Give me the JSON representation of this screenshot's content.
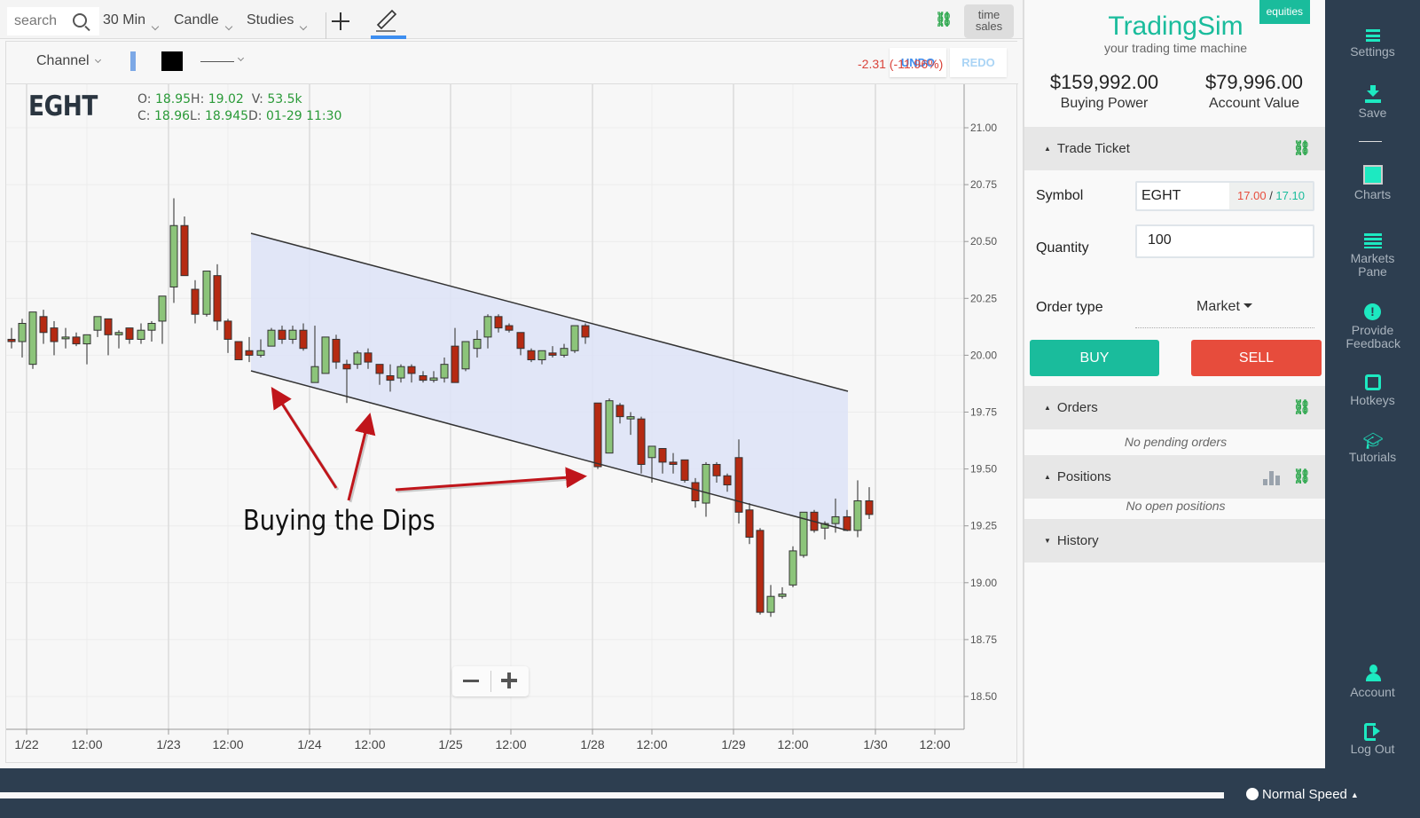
{
  "toolbar": {
    "search_placeholder": "search",
    "interval": "30 Min",
    "chart_type": "Candle",
    "studies": "Studies",
    "time_sales_line1": "time",
    "time_sales_line2": "sales"
  },
  "drawing_bar": {
    "tool": "Channel",
    "fill_color": "#7ca8e6",
    "line_color": "#000000",
    "undo": "UNDO",
    "redo": "REDO",
    "change": "-2.31 (-11.96%)"
  },
  "quote": {
    "symbol": "EGHT",
    "open_label": "O: ",
    "open": "18.95",
    "high_label": "H: ",
    "high": "19.02",
    "volume_label": "V: ",
    "volume": "53.5k",
    "close_label": "C: ",
    "close": "18.96",
    "low_label": "L: ",
    "low": "18.945",
    "date_label": "D: ",
    "date": "01-29 11:30"
  },
  "annotation": {
    "text": "Buying the Dips"
  },
  "chart_data": {
    "type": "candlestick",
    "title": "EGHT 30 Min",
    "y_ticks": [
      "21.00",
      "20.75",
      "20.50",
      "20.25",
      "20.00",
      "19.75",
      "19.50",
      "19.25",
      "19.00",
      "18.75",
      "18.50"
    ],
    "x_ticks": [
      {
        "label": "1/22",
        "x": 29
      },
      {
        "label": "12:00",
        "x": 97
      },
      {
        "label": "1/23",
        "x": 189
      },
      {
        "label": "12:00",
        "x": 256
      },
      {
        "label": "1/24",
        "x": 348
      },
      {
        "label": "12:00",
        "x": 416
      },
      {
        "label": "1/25",
        "x": 507
      },
      {
        "label": "12:00",
        "x": 575
      },
      {
        "label": "1/28",
        "x": 667
      },
      {
        "label": "12:00",
        "x": 734
      },
      {
        "label": "1/29",
        "x": 826
      },
      {
        "label": "12:00",
        "x": 893
      },
      {
        "label": "1/30",
        "x": 986
      },
      {
        "label": "12:00",
        "x": 1053
      }
    ],
    "ylim": [
      18.4,
      21.2
    ],
    "channel": {
      "upper": [
        [
          282,
          262
        ],
        [
          955,
          440
        ]
      ],
      "lower": [
        [
          282,
          417
        ],
        [
          955,
          597
        ]
      ],
      "fill": "#dde3f7"
    },
    "candles": [
      {
        "x": 12,
        "o": 20.07,
        "h": 20.12,
        "l": 20.03,
        "c": 20.06
      },
      {
        "x": 24,
        "o": 20.06,
        "h": 20.16,
        "l": 19.99,
        "c": 20.14
      },
      {
        "x": 36,
        "o": 19.96,
        "h": 20.19,
        "l": 19.94,
        "c": 20.19
      },
      {
        "x": 48,
        "o": 20.17,
        "h": 20.2,
        "l": 20.05,
        "c": 20.1
      },
      {
        "x": 60,
        "o": 20.12,
        "h": 20.15,
        "l": 20.0,
        "c": 20.06
      },
      {
        "x": 73,
        "o": 20.08,
        "h": 20.12,
        "l": 20.03,
        "c": 20.08
      },
      {
        "x": 85,
        "o": 20.08,
        "h": 20.1,
        "l": 20.04,
        "c": 20.05
      },
      {
        "x": 97,
        "o": 20.05,
        "h": 20.09,
        "l": 19.96,
        "c": 20.09
      },
      {
        "x": 109,
        "o": 20.11,
        "h": 20.16,
        "l": 20.08,
        "c": 20.17
      },
      {
        "x": 121,
        "o": 20.16,
        "h": 20.16,
        "l": 20.0,
        "c": 20.09
      },
      {
        "x": 133,
        "o": 20.09,
        "h": 20.11,
        "l": 20.03,
        "c": 20.1
      },
      {
        "x": 145,
        "o": 20.12,
        "h": 20.12,
        "l": 20.05,
        "c": 20.07
      },
      {
        "x": 158,
        "o": 20.07,
        "h": 20.14,
        "l": 20.05,
        "c": 20.11
      },
      {
        "x": 170,
        "o": 20.11,
        "h": 20.15,
        "l": 20.06,
        "c": 20.14
      },
      {
        "x": 182,
        "o": 20.15,
        "h": 20.26,
        "l": 20.05,
        "c": 20.26
      },
      {
        "x": 195,
        "o": 20.3,
        "h": 20.69,
        "l": 20.23,
        "c": 20.57
      },
      {
        "x": 207,
        "o": 20.57,
        "h": 20.61,
        "l": 20.37,
        "c": 20.35
      },
      {
        "x": 219,
        "o": 20.29,
        "h": 20.33,
        "l": 20.14,
        "c": 20.18
      },
      {
        "x": 232,
        "o": 20.18,
        "h": 20.36,
        "l": 20.17,
        "c": 20.37
      },
      {
        "x": 244,
        "o": 20.35,
        "h": 20.4,
        "l": 20.11,
        "c": 20.15
      },
      {
        "x": 256,
        "o": 20.15,
        "h": 20.16,
        "l": 20.01,
        "c": 20.07
      },
      {
        "x": 268,
        "o": 20.06,
        "h": 20.06,
        "l": 19.98,
        "c": 19.98
      },
      {
        "x": 280,
        "o": 20.02,
        "h": 20.08,
        "l": 19.97,
        "c": 20.0
      },
      {
        "x": 293,
        "o": 20.0,
        "h": 20.07,
        "l": 19.99,
        "c": 20.02
      },
      {
        "x": 305,
        "o": 20.04,
        "h": 20.12,
        "l": 20.04,
        "c": 20.11
      },
      {
        "x": 317,
        "o": 20.11,
        "h": 20.13,
        "l": 20.05,
        "c": 20.07
      },
      {
        "x": 329,
        "o": 20.07,
        "h": 20.13,
        "l": 20.05,
        "c": 20.11
      },
      {
        "x": 341,
        "o": 20.11,
        "h": 20.14,
        "l": 20.02,
        "c": 20.03
      },
      {
        "x": 354,
        "o": 19.88,
        "h": 20.13,
        "l": 19.88,
        "c": 19.95
      },
      {
        "x": 366,
        "o": 19.92,
        "h": 20.08,
        "l": 19.92,
        "c": 20.08
      },
      {
        "x": 378,
        "o": 20.07,
        "h": 20.09,
        "l": 19.94,
        "c": 19.97
      },
      {
        "x": 390,
        "o": 19.96,
        "h": 19.98,
        "l": 19.79,
        "c": 19.94
      },
      {
        "x": 402,
        "o": 19.96,
        "h": 20.02,
        "l": 19.94,
        "c": 20.01
      },
      {
        "x": 414,
        "o": 20.01,
        "h": 20.03,
        "l": 19.94,
        "c": 19.97
      },
      {
        "x": 427,
        "o": 19.96,
        "h": 19.96,
        "l": 19.87,
        "c": 19.92
      },
      {
        "x": 439,
        "o": 19.91,
        "h": 19.96,
        "l": 19.84,
        "c": 19.89
      },
      {
        "x": 451,
        "o": 19.9,
        "h": 19.96,
        "l": 19.88,
        "c": 19.95
      },
      {
        "x": 463,
        "o": 19.95,
        "h": 19.96,
        "l": 19.88,
        "c": 19.92
      },
      {
        "x": 476,
        "o": 19.91,
        "h": 19.93,
        "l": 19.88,
        "c": 19.89
      },
      {
        "x": 488,
        "o": 19.89,
        "h": 19.93,
        "l": 19.88,
        "c": 19.9
      },
      {
        "x": 500,
        "o": 19.9,
        "h": 19.99,
        "l": 19.88,
        "c": 19.96
      },
      {
        "x": 512,
        "o": 20.04,
        "h": 20.12,
        "l": 19.93,
        "c": 19.88
      },
      {
        "x": 524,
        "o": 19.94,
        "h": 20.05,
        "l": 19.93,
        "c": 20.06
      },
      {
        "x": 537,
        "o": 20.03,
        "h": 20.11,
        "l": 19.99,
        "c": 20.07
      },
      {
        "x": 549,
        "o": 20.08,
        "h": 20.18,
        "l": 20.03,
        "c": 20.17
      },
      {
        "x": 561,
        "o": 20.17,
        "h": 20.18,
        "l": 20.1,
        "c": 20.12
      },
      {
        "x": 573,
        "o": 20.13,
        "h": 20.14,
        "l": 20.1,
        "c": 20.11
      },
      {
        "x": 586,
        "o": 20.1,
        "h": 20.1,
        "l": 20.0,
        "c": 20.03
      },
      {
        "x": 598,
        "o": 20.02,
        "h": 20.03,
        "l": 19.97,
        "c": 19.98
      },
      {
        "x": 610,
        "o": 19.98,
        "h": 20.02,
        "l": 19.96,
        "c": 20.02
      },
      {
        "x": 622,
        "o": 20.01,
        "h": 20.04,
        "l": 19.99,
        "c": 20.0
      },
      {
        "x": 635,
        "o": 20.0,
        "h": 20.05,
        "l": 19.99,
        "c": 20.03
      },
      {
        "x": 647,
        "o": 20.02,
        "h": 20.13,
        "l": 20.01,
        "c": 20.13
      },
      {
        "x": 659,
        "o": 20.13,
        "h": 20.14,
        "l": 20.05,
        "c": 20.08
      },
      {
        "x": 673,
        "o": 19.79,
        "h": 19.79,
        "l": 19.5,
        "c": 19.51
      },
      {
        "x": 686,
        "o": 19.57,
        "h": 19.81,
        "l": 19.57,
        "c": 19.8
      },
      {
        "x": 698,
        "o": 19.78,
        "h": 19.79,
        "l": 19.7,
        "c": 19.73
      },
      {
        "x": 710,
        "o": 19.72,
        "h": 19.75,
        "l": 19.65,
        "c": 19.73
      },
      {
        "x": 722,
        "o": 19.72,
        "h": 19.73,
        "l": 19.48,
        "c": 19.52
      },
      {
        "x": 734,
        "o": 19.55,
        "h": 19.58,
        "l": 19.44,
        "c": 19.6
      },
      {
        "x": 746,
        "o": 19.59,
        "h": 19.59,
        "l": 19.48,
        "c": 19.53
      },
      {
        "x": 758,
        "o": 19.53,
        "h": 19.57,
        "l": 19.48,
        "c": 19.52
      },
      {
        "x": 771,
        "o": 19.54,
        "h": 19.54,
        "l": 19.44,
        "c": 19.45
      },
      {
        "x": 783,
        "o": 19.44,
        "h": 19.46,
        "l": 19.33,
        "c": 19.36
      },
      {
        "x": 795,
        "o": 19.35,
        "h": 19.53,
        "l": 19.29,
        "c": 19.52
      },
      {
        "x": 807,
        "o": 19.52,
        "h": 19.53,
        "l": 19.44,
        "c": 19.47
      },
      {
        "x": 819,
        "o": 19.47,
        "h": 19.48,
        "l": 19.4,
        "c": 19.43
      },
      {
        "x": 832,
        "o": 19.55,
        "h": 19.63,
        "l": 19.26,
        "c": 19.31
      },
      {
        "x": 844,
        "o": 19.32,
        "h": 19.35,
        "l": 19.17,
        "c": 19.2
      },
      {
        "x": 856,
        "o": 19.23,
        "h": 19.24,
        "l": 18.86,
        "c": 18.87
      },
      {
        "x": 868,
        "o": 18.87,
        "h": 18.99,
        "l": 18.85,
        "c": 18.94
      },
      {
        "x": 881,
        "o": 18.94,
        "h": 18.98,
        "l": 18.93,
        "c": 18.95
      },
      {
        "x": 893,
        "o": 18.99,
        "h": 19.16,
        "l": 18.98,
        "c": 19.14
      },
      {
        "x": 905,
        "o": 19.12,
        "h": 19.31,
        "l": 19.11,
        "c": 19.31
      },
      {
        "x": 917,
        "o": 19.31,
        "h": 19.32,
        "l": 19.22,
        "c": 19.23
      },
      {
        "x": 929,
        "o": 19.24,
        "h": 19.27,
        "l": 19.19,
        "c": 19.26
      },
      {
        "x": 941,
        "o": 19.26,
        "h": 19.37,
        "l": 19.22,
        "c": 19.29
      },
      {
        "x": 954,
        "o": 19.29,
        "h": 19.32,
        "l": 19.23,
        "c": 19.23
      },
      {
        "x": 966,
        "o": 19.23,
        "h": 19.45,
        "l": 19.2,
        "c": 19.36
      },
      {
        "x": 979,
        "o": 19.36,
        "h": 19.42,
        "l": 19.28,
        "c": 19.3
      }
    ]
  },
  "zoom_controls": {
    "minus": "−",
    "plus": "+"
  },
  "right_panel": {
    "badge": "equities",
    "brand": "TradingSim",
    "tagline": "your trading time machine",
    "buying_power": "$159,992.00",
    "buying_power_label": "Buying Power",
    "account_value": "$79,996.00",
    "account_value_label": "Account Value",
    "trade_ticket": {
      "title": "Trade Ticket",
      "symbol_label": "Symbol",
      "symbol_value": "EGHT",
      "bid": "17.00",
      "ask": "17.10",
      "bid_color": "#e74c3c",
      "ask_color": "#1abc9c",
      "quantity_label": "Quantity",
      "quantity_value": "100",
      "order_type_label": "Order type",
      "order_type_value": "Market",
      "buy": "BUY",
      "sell": "SELL"
    },
    "orders": {
      "title": "Orders",
      "empty": "No pending orders"
    },
    "positions": {
      "title": "Positions",
      "empty": "No open positions"
    },
    "history": {
      "title": "History"
    }
  },
  "sidebar": {
    "items": [
      {
        "label": "Settings"
      },
      {
        "label": "Save"
      },
      {
        "label": "Charts"
      },
      {
        "label": "Markets Pane"
      },
      {
        "label": "Provide Feedback"
      },
      {
        "label": "Hotkeys"
      },
      {
        "label": "Tutorials"
      },
      {
        "label": "Account"
      },
      {
        "label": "Log Out"
      }
    ]
  },
  "footer": {
    "speed": "Normal Speed"
  }
}
